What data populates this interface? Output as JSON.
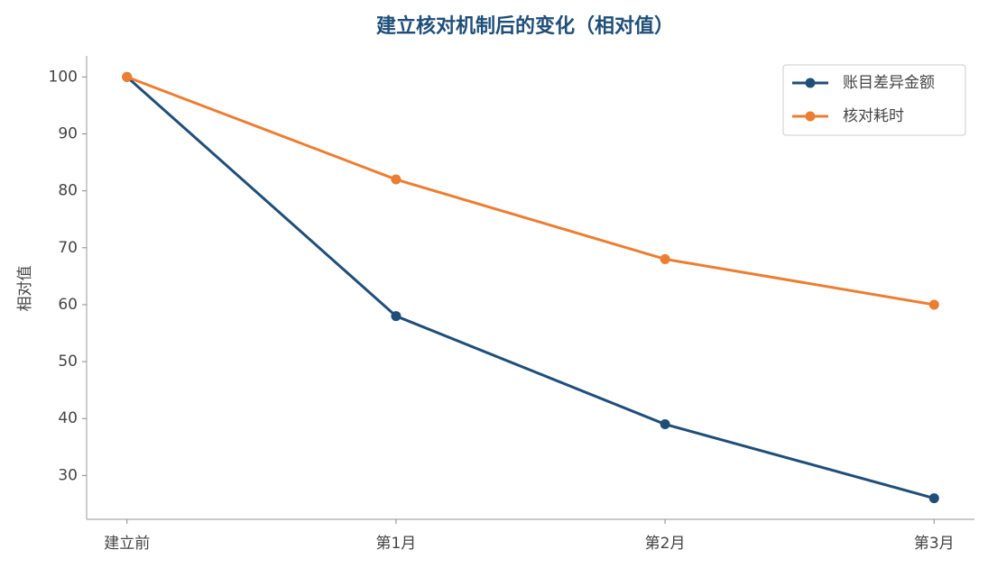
{
  "chart_data": {
    "type": "line",
    "title": "建立核对机制后的变化（相对值）",
    "ylabel": "相对值",
    "categories": [
      "建立前",
      "第1月",
      "第2月",
      "第3月"
    ],
    "series": [
      {
        "name": "账目差异金额",
        "color": "#1f4e79",
        "values": [
          100,
          58,
          39,
          26
        ]
      },
      {
        "name": "核对耗时",
        "color": "#ed7d31",
        "values": [
          100,
          82,
          68,
          60
        ]
      }
    ],
    "ylim": [
      22.3,
      103.7
    ],
    "yticks": [
      30,
      40,
      50,
      60,
      70,
      80,
      90,
      100
    ],
    "legend": "upper right",
    "grid": false
  }
}
